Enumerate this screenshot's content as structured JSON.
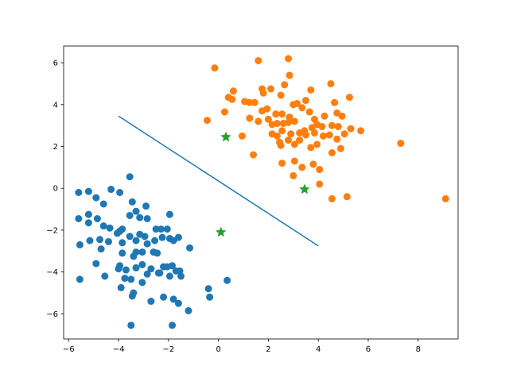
{
  "chart_data": {
    "type": "scatter",
    "xlim": [
      -6.2,
      9.6
    ],
    "ylim": [
      -7.2,
      6.8
    ],
    "xticks": [
      -6,
      -4,
      -2,
      0,
      2,
      4,
      6,
      8
    ],
    "yticks": [
      -6,
      -4,
      -2,
      0,
      2,
      4,
      6
    ],
    "grid": false,
    "legend": "none",
    "series": [
      {
        "kind": "points",
        "color": "#1f77b4",
        "points": [
          [
            -5.6,
            -0.2
          ],
          [
            -5.2,
            -0.15
          ],
          [
            -4.9,
            -0.45
          ],
          [
            -4.6,
            -0.75
          ],
          [
            -4.3,
            -0.05
          ],
          [
            -3.95,
            -0.2
          ],
          [
            -3.55,
            0.55
          ],
          [
            -5.6,
            -1.45
          ],
          [
            -5.2,
            -1.25
          ],
          [
            -5.2,
            -1.65
          ],
          [
            -4.85,
            -1.45
          ],
          [
            -4.6,
            -1.8
          ],
          [
            -4.35,
            -1.9
          ],
          [
            -3.85,
            -1.95
          ],
          [
            -3.55,
            -1.3
          ],
          [
            -3.45,
            -0.65
          ],
          [
            -3.3,
            -1.1
          ],
          [
            -3.15,
            -1.4
          ],
          [
            -2.9,
            -0.85
          ],
          [
            -2.85,
            -1.45
          ],
          [
            -2.5,
            -1.95
          ],
          [
            -2.3,
            -1.95
          ],
          [
            -2.05,
            -1.95
          ],
          [
            -1.95,
            -1.25
          ],
          [
            -1.6,
            -2.35
          ],
          [
            -5.55,
            -2.7
          ],
          [
            -5.15,
            -2.5
          ],
          [
            -4.75,
            -2.45
          ],
          [
            -4.7,
            -2.9
          ],
          [
            -4.4,
            -2.55
          ],
          [
            -4.05,
            -2.15
          ],
          [
            -3.95,
            -2.05
          ],
          [
            -3.85,
            -2.6
          ],
          [
            -3.85,
            -3.1
          ],
          [
            -3.55,
            -2.3
          ],
          [
            -3.3,
            -2.5
          ],
          [
            -3.15,
            -2.2
          ],
          [
            -2.95,
            -2.3
          ],
          [
            -2.85,
            -2.65
          ],
          [
            -2.55,
            -2.5
          ],
          [
            -2.25,
            -2.35
          ],
          [
            -1.95,
            -2.4
          ],
          [
            -1.8,
            -2.5
          ],
          [
            -1.15,
            -2.85
          ],
          [
            -4.9,
            -3.6
          ],
          [
            -4.55,
            -4.2
          ],
          [
            -3.95,
            -3.7
          ],
          [
            -3.7,
            -3.9
          ],
          [
            -3.4,
            -3.25
          ],
          [
            -3.3,
            -3.05
          ],
          [
            -3.05,
            -3.05
          ],
          [
            -3.05,
            -3.65
          ],
          [
            -2.85,
            -4.1
          ],
          [
            -2.7,
            -3.85
          ],
          [
            -2.6,
            -3.05
          ],
          [
            -2.35,
            -4.05
          ],
          [
            -2.2,
            -3.75
          ],
          [
            -2.05,
            -3.75
          ],
          [
            -1.85,
            -3.7
          ],
          [
            -1.7,
            -3.95
          ],
          [
            -1.55,
            -3.95
          ],
          [
            -1.5,
            -4.2
          ],
          [
            -1.95,
            -4.2
          ],
          [
            -5.55,
            -4.35
          ],
          [
            -3.9,
            -4.75
          ],
          [
            -3.75,
            -4.3
          ],
          [
            -3.5,
            -4.35
          ],
          [
            -3.05,
            -4.5
          ],
          [
            -2.7,
            -5.4
          ],
          [
            -2.4,
            -4.05
          ],
          [
            -2.2,
            -5.2
          ],
          [
            -1.8,
            -5.3
          ],
          [
            -1.6,
            -5.5
          ],
          [
            -1.2,
            -5.85
          ],
          [
            -0.4,
            -4.8
          ],
          [
            -0.35,
            -5.2
          ],
          [
            0.35,
            -4.4
          ],
          [
            -3.45,
            -5.15
          ],
          [
            -3.4,
            -5.0
          ],
          [
            -4.0,
            -3.85
          ],
          [
            -1.85,
            -6.55
          ],
          [
            -3.5,
            -6.55
          ],
          [
            -3.3,
            -3.8
          ],
          [
            -2.45,
            -3.1
          ]
        ]
      },
      {
        "kind": "points",
        "color": "#ff7f0e",
        "points": [
          [
            -0.15,
            5.75
          ],
          [
            1.6,
            6.1
          ],
          [
            2.8,
            6.2
          ],
          [
            2.85,
            5.4
          ],
          [
            4.5,
            5.0
          ],
          [
            1.75,
            4.75
          ],
          [
            2.1,
            4.75
          ],
          [
            2.65,
            4.95
          ],
          [
            0.6,
            4.65
          ],
          [
            0.55,
            4.25
          ],
          [
            0.4,
            4.35
          ],
          [
            1.8,
            4.55
          ],
          [
            2.5,
            4.45
          ],
          [
            3.0,
            4.0
          ],
          [
            3.5,
            4.2
          ],
          [
            3.7,
            4.7
          ],
          [
            4.65,
            4.1
          ],
          [
            5.25,
            4.35
          ],
          [
            0.25,
            3.65
          ],
          [
            1.05,
            4.15
          ],
          [
            1.25,
            4.1
          ],
          [
            1.45,
            4.1
          ],
          [
            1.75,
            3.7
          ],
          [
            1.95,
            3.8
          ],
          [
            2.3,
            3.55
          ],
          [
            2.55,
            3.55
          ],
          [
            2.85,
            3.4
          ],
          [
            3.15,
            4.05
          ],
          [
            3.35,
            3.85
          ],
          [
            3.65,
            3.65
          ],
          [
            3.85,
            3.3
          ],
          [
            4.25,
            3.45
          ],
          [
            4.75,
            3.6
          ],
          [
            4.95,
            3.45
          ],
          [
            -0.45,
            3.25
          ],
          [
            1.25,
            3.35
          ],
          [
            1.6,
            3.2
          ],
          [
            2.0,
            3.3
          ],
          [
            2.15,
            3.05
          ],
          [
            2.35,
            3.1
          ],
          [
            2.6,
            3.1
          ],
          [
            2.8,
            3.15
          ],
          [
            3.05,
            3.2
          ],
          [
            3.45,
            2.75
          ],
          [
            3.75,
            2.9
          ],
          [
            3.95,
            3.05
          ],
          [
            4.15,
            2.95
          ],
          [
            4.55,
            3.0
          ],
          [
            4.8,
            2.95
          ],
          [
            5.05,
            2.6
          ],
          [
            5.3,
            2.85
          ],
          [
            5.7,
            2.75
          ],
          [
            0.95,
            2.5
          ],
          [
            2.15,
            2.6
          ],
          [
            2.35,
            2.5
          ],
          [
            2.55,
            2.75
          ],
          [
            2.9,
            2.6
          ],
          [
            3.25,
            2.65
          ],
          [
            3.5,
            2.55
          ],
          [
            3.85,
            2.65
          ],
          [
            4.2,
            2.5
          ],
          [
            4.45,
            2.55
          ],
          [
            4.75,
            2.35
          ],
          [
            2.45,
            2.2
          ],
          [
            2.8,
            2.3
          ],
          [
            3.05,
            2.1
          ],
          [
            3.25,
            2.3
          ],
          [
            2.5,
            2.05
          ],
          [
            3.7,
            1.95
          ],
          [
            3.95,
            2.1
          ],
          [
            4.55,
            1.7
          ],
          [
            4.9,
            1.9
          ],
          [
            1.4,
            1.6
          ],
          [
            2.55,
            1.2
          ],
          [
            3.05,
            1.3
          ],
          [
            3.35,
            1.0
          ],
          [
            3.8,
            1.15
          ],
          [
            4.05,
            0.9
          ],
          [
            3.0,
            0.6
          ],
          [
            4.05,
            0.2
          ],
          [
            5.15,
            -0.4
          ],
          [
            4.55,
            -0.5
          ],
          [
            7.3,
            2.15
          ],
          [
            9.1,
            -0.5
          ]
        ]
      },
      {
        "kind": "line",
        "color": "#1f77b4",
        "points": [
          [
            -4.0,
            3.45
          ],
          [
            4.0,
            -2.75
          ]
        ]
      },
      {
        "kind": "stars",
        "color": "#2ca02c",
        "points": [
          [
            0.3,
            2.45
          ],
          [
            3.45,
            -0.05
          ],
          [
            0.1,
            -2.1
          ]
        ]
      }
    ]
  }
}
